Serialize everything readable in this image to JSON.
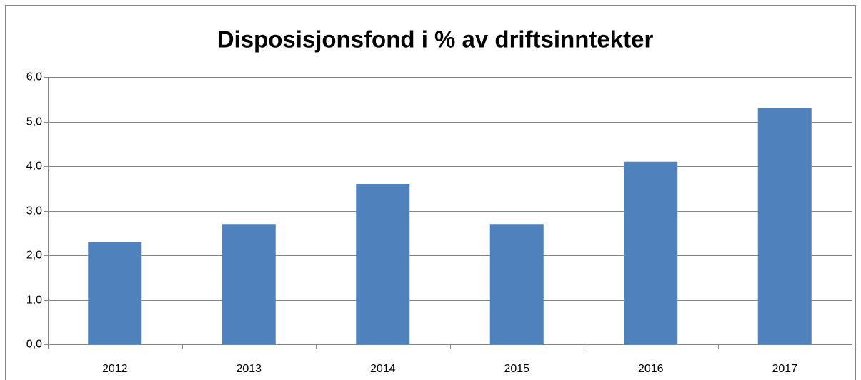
{
  "chart_data": {
    "type": "bar",
    "title": "Disposisjonsfond i % av driftsinntekter",
    "categories": [
      "2012",
      "2013",
      "2014",
      "2015",
      "2016",
      "2017"
    ],
    "values": [
      2.3,
      2.7,
      3.6,
      2.7,
      4.1,
      5.3
    ],
    "color": "#4f81bd",
    "ylim": [
      0,
      6
    ],
    "yticks": [
      {
        "value": 0,
        "label": "0,0"
      },
      {
        "value": 1,
        "label": "1,0"
      },
      {
        "value": 2,
        "label": "2,0"
      },
      {
        "value": 3,
        "label": "3,0"
      },
      {
        "value": 4,
        "label": "4,0"
      },
      {
        "value": 5,
        "label": "5,0"
      },
      {
        "value": 6,
        "label": "6,0"
      }
    ],
    "grid": true
  }
}
